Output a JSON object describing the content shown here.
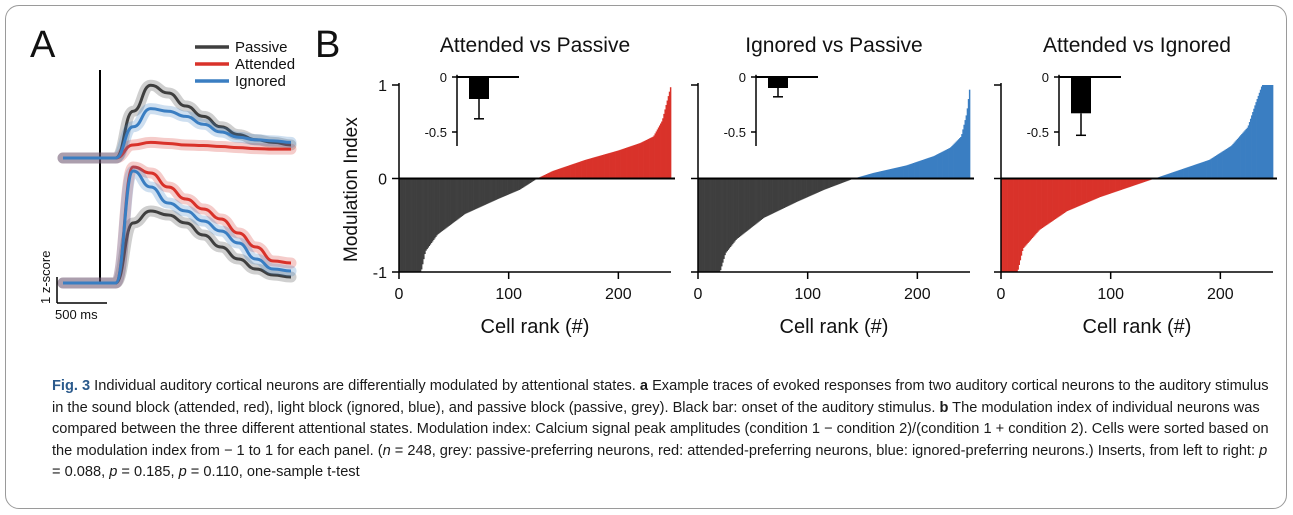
{
  "panel_a": {
    "letter": "A",
    "scale_y_label": "1 z-score",
    "scale_x_label": "500 ms",
    "legend": [
      {
        "label": "Passive",
        "color": "#3f3f3f"
      },
      {
        "label": "Attended",
        "color": "#d9322a"
      },
      {
        "label": "Ignored",
        "color": "#3a7ec2"
      }
    ]
  },
  "panel_b": {
    "letter": "B",
    "y_axis_label": "Modulation Index",
    "x_axis_label": "Cell rank (#)"
  },
  "colors": {
    "grey": "#3f3f3f",
    "red": "#d9322a",
    "blue": "#3a7ec2"
  },
  "chart_data": [
    {
      "type": "line",
      "panel": "A",
      "note_units": "z-score vs time",
      "series": [
        {
          "name": "Passive",
          "values": [
            0,
            0,
            0,
            0,
            0.9,
            1.4,
            1.25,
            1.0,
            0.8,
            0.6,
            0.45,
            0.35,
            0.3,
            0.25
          ]
        },
        {
          "name": "Attended",
          "values": [
            0,
            0,
            0,
            0,
            0.25,
            0.3,
            0.28,
            0.25,
            0.24,
            0.22,
            0.2,
            0.18,
            0.17,
            0.17
          ]
        },
        {
          "name": "Ignored",
          "values": [
            0,
            0,
            0,
            0,
            0.6,
            0.95,
            0.9,
            0.8,
            0.65,
            0.5,
            0.4,
            0.35,
            0.33,
            0.3
          ]
        }
      ]
    },
    {
      "type": "line",
      "panel": "A",
      "note_units": "z-score vs time",
      "series": [
        {
          "name": "Passive",
          "values": [
            0,
            0,
            0,
            0,
            1.5,
            1.8,
            1.7,
            1.5,
            1.2,
            0.9,
            0.6,
            0.35,
            0.2,
            0.15
          ]
        },
        {
          "name": "Attended",
          "values": [
            0,
            0,
            0,
            0,
            2.9,
            2.75,
            2.4,
            2.1,
            1.85,
            1.6,
            1.25,
            0.9,
            0.55,
            0.5
          ]
        },
        {
          "name": "Ignored",
          "values": [
            0,
            0,
            0,
            0,
            2.8,
            2.4,
            2.0,
            1.8,
            1.55,
            1.3,
            1.0,
            0.6,
            0.35,
            0.3
          ]
        }
      ]
    },
    {
      "type": "area",
      "title": "Attended vs Passive",
      "xlabel": "Cell rank (#)",
      "ylabel": "Modulation Index",
      "x_ticks": [
        0,
        100,
        200
      ],
      "y_ticks": [
        -1,
        0,
        1
      ],
      "xlim": [
        0,
        248
      ],
      "ylim": [
        -1,
        1
      ],
      "n": 248,
      "rank_profile": {
        "x": [
          0,
          20,
          24,
          35,
          60,
          90,
          110,
          126,
          140,
          170,
          200,
          220,
          232,
          240,
          248
        ],
        "y": [
          -1,
          -1,
          -0.78,
          -0.6,
          -0.38,
          -0.22,
          -0.12,
          0,
          0.08,
          0.2,
          0.3,
          0.38,
          0.45,
          0.62,
          1
        ]
      },
      "negative_color": "#3f3f3f",
      "positive_color": "#d9322a",
      "inset": {
        "type": "bar",
        "mean": -0.2,
        "error": 0.18,
        "y_ticks": [
          0,
          -0.5
        ]
      }
    },
    {
      "type": "area",
      "title": "Ignored vs Passive",
      "xlabel": "Cell rank (#)",
      "ylabel": "Modulation Index",
      "x_ticks": [
        0,
        100,
        200
      ],
      "y_ticks": [
        -1,
        0,
        1
      ],
      "xlim": [
        0,
        248
      ],
      "ylim": [
        -1,
        1
      ],
      "n": 248,
      "rank_profile": {
        "x": [
          0,
          20,
          25,
          35,
          60,
          90,
          115,
          142,
          160,
          190,
          215,
          230,
          240,
          245,
          248
        ],
        "y": [
          -1,
          -1,
          -0.8,
          -0.65,
          -0.42,
          -0.25,
          -0.12,
          0,
          0.06,
          0.14,
          0.24,
          0.33,
          0.45,
          0.7,
          1
        ]
      },
      "negative_color": "#3f3f3f",
      "positive_color": "#3a7ec2",
      "inset": {
        "type": "bar",
        "mean": -0.1,
        "error": 0.08,
        "y_ticks": [
          0,
          -0.5
        ]
      }
    },
    {
      "type": "area",
      "title": "Attended vs Ignored",
      "xlabel": "Cell rank (#)",
      "ylabel": "Modulation Index",
      "x_ticks": [
        0,
        100,
        200
      ],
      "y_ticks": [
        -1,
        0,
        1
      ],
      "xlim": [
        0,
        248
      ],
      "ylim": [
        -1,
        1
      ],
      "n": 248,
      "rank_profile": {
        "x": [
          0,
          15,
          20,
          35,
          60,
          90,
          115,
          140,
          160,
          190,
          210,
          225,
          232,
          238,
          248
        ],
        "y": [
          -1,
          -1,
          -0.75,
          -0.55,
          -0.35,
          -0.2,
          -0.1,
          0,
          0.08,
          0.2,
          0.35,
          0.55,
          0.8,
          1,
          1
        ]
      },
      "negative_color": "#d9322a",
      "positive_color": "#3a7ec2",
      "inset": {
        "type": "bar",
        "mean": -0.33,
        "error": 0.2,
        "y_ticks": [
          0,
          -0.5
        ]
      }
    }
  ],
  "caption": {
    "fig_label": "Fig. 3",
    "title": "Individual auditory cortical neurons are differentially modulated by attentional states.",
    "a_label": "a",
    "a_text": "Example traces of evoked responses from two auditory cortical neurons to the auditory stimulus in the sound block (attended, red), light block (ignored, blue), and passive block (passive, grey). Black bar: onset of the auditory stimulus.",
    "b_label": "b",
    "b_text": "The modulation index of individual neurons was compared between the three different attentional states. Modulation index: Calcium signal peak amplitudes (condition 1 − condition 2)/(condition 1 + condition 2). Cells were sorted based on the modulation index from − 1 to 1 for each panel. (",
    "n_sym": "n",
    "n_text": " = 248, grey: passive-preferring neurons, red: attended-preferring neurons, blue: ignored-preferring neurons.) Inserts, from left to right: ",
    "p1_sym": "p",
    "p1_text": " = 0.088, ",
    "p2_sym": "p",
    "p2_text": " = 0.185, ",
    "p3_sym": "p",
    "p3_text": " = 0.110, one-sample t-test"
  }
}
